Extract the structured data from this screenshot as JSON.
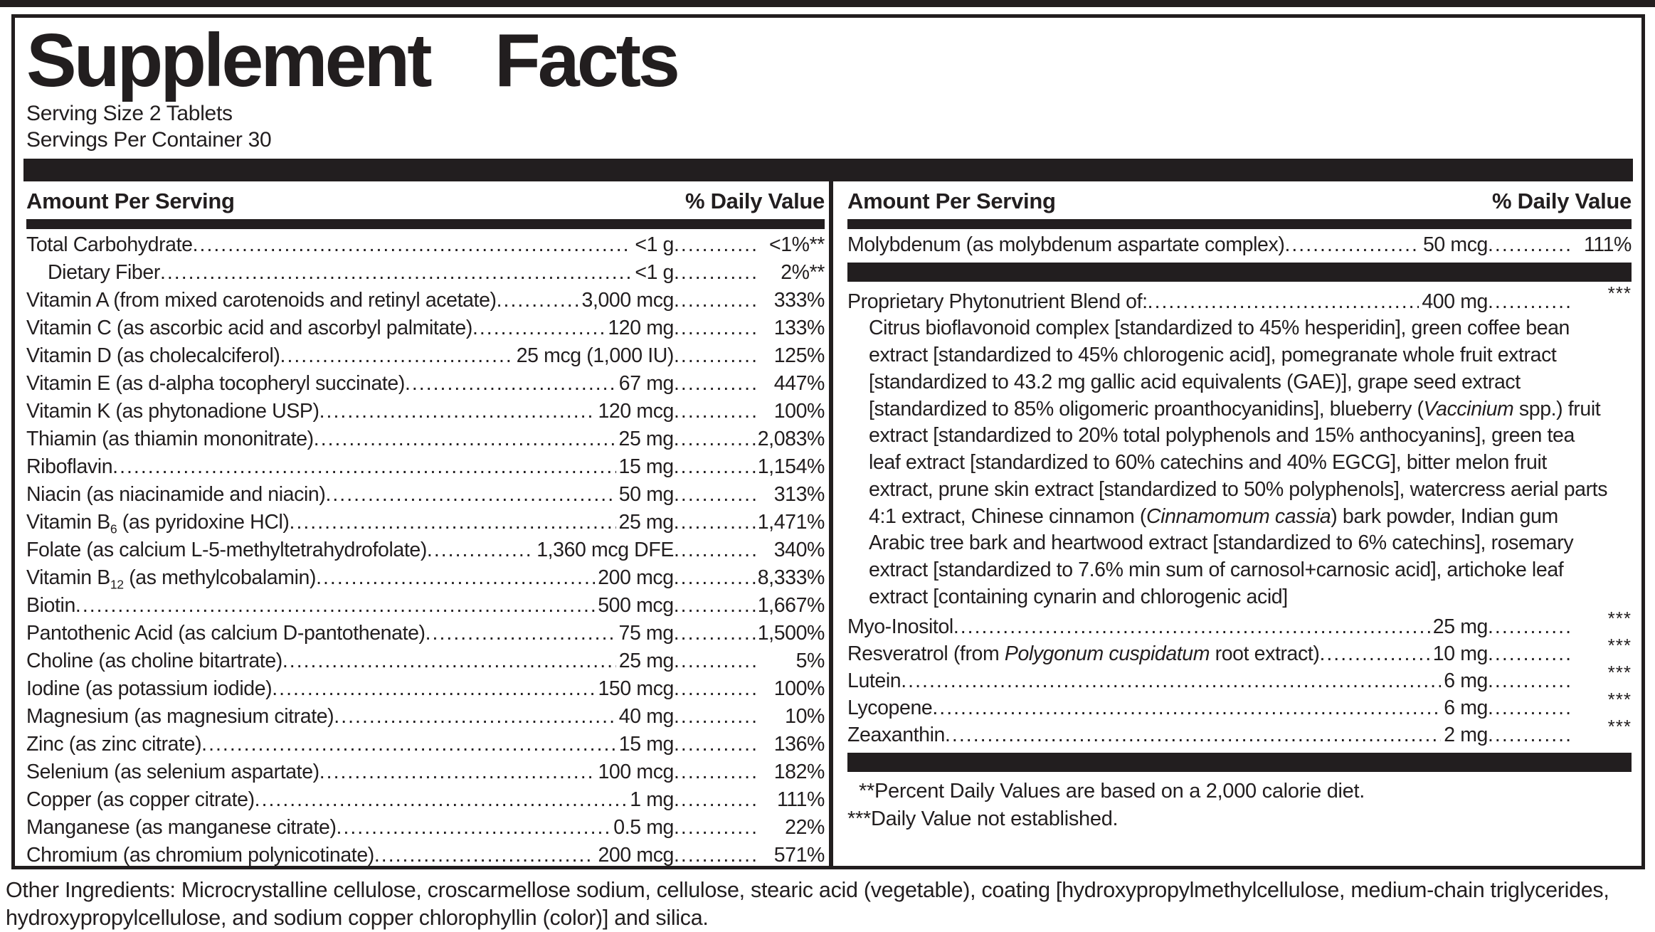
{
  "ink_color": "#221e1f",
  "title": "Supplement Facts",
  "serving": {
    "size": "Serving Size 2 Tablets",
    "per_container": "Servings Per Container 30"
  },
  "column_header": {
    "amount": "Amount Per Serving",
    "daily_value": "% Daily Value"
  },
  "left_column": {
    "rows": [
      {
        "name_parts": [
          {
            "t": "Total Carbohydrate "
          }
        ],
        "amount": "<1 g",
        "dv": "<1%**"
      },
      {
        "name_parts": [
          {
            "t": "Dietary Fiber"
          }
        ],
        "amount": "<1 g",
        "dv": "2%**",
        "indent": true
      },
      {
        "name_parts": [
          {
            "t": "Vitamin A (from mixed carotenoids and retinyl acetate)"
          }
        ],
        "amount": "3,000 mcg",
        "dv": "333%"
      },
      {
        "name_parts": [
          {
            "t": "Vitamin C (as ascorbic acid and ascorbyl palmitate) "
          }
        ],
        "amount": "120 mg",
        "dv": "133%"
      },
      {
        "name_parts": [
          {
            "t": "Vitamin D (as cholecalciferol)"
          }
        ],
        "amount": "25 mcg (1,000 IU)",
        "dv": "125%"
      },
      {
        "name_parts": [
          {
            "t": "Vitamin E (as d-alpha tocopheryl succinate)"
          }
        ],
        "amount": "67 mg",
        "dv": "447%"
      },
      {
        "name_parts": [
          {
            "t": "Vitamin K (as phytonadione USP) "
          }
        ],
        "amount": "120 mcg",
        "dv": "100%"
      },
      {
        "name_parts": [
          {
            "t": "Thiamin (as thiamin mononitrate) "
          }
        ],
        "amount": "25 mg",
        "dv": "2,083%"
      },
      {
        "name_parts": [
          {
            "t": "Riboflavin"
          }
        ],
        "amount": "15 mg",
        "dv": "1,154%"
      },
      {
        "name_parts": [
          {
            "t": "Niacin (as niacinamide and niacin)"
          }
        ],
        "amount": "50 mg",
        "dv": "313%"
      },
      {
        "name_parts": [
          {
            "t": "Vitamin B"
          },
          {
            "t": "6",
            "sub": true
          },
          {
            "t": " (as pyridoxine HCl)"
          }
        ],
        "amount": "25 mg",
        "dv": "1,471%"
      },
      {
        "name_parts": [
          {
            "t": "Folate (as calcium L-5-methyltetrahydrofolate)"
          }
        ],
        "amount": "1,360 mcg DFE",
        "dv": "340%"
      },
      {
        "name_parts": [
          {
            "t": "Vitamin B"
          },
          {
            "t": "12",
            "sub": true
          },
          {
            "t": " (as methylcobalamin)"
          }
        ],
        "amount": "200 mcg",
        "dv": "8,333%"
      },
      {
        "name_parts": [
          {
            "t": "Biotin"
          }
        ],
        "amount": "500 mcg",
        "dv": "1,667%"
      },
      {
        "name_parts": [
          {
            "t": "Pantothenic Acid (as calcium D-pantothenate)"
          }
        ],
        "amount": "75 mg",
        "dv": "1,500%"
      },
      {
        "name_parts": [
          {
            "t": "Choline (as choline bitartrate) "
          }
        ],
        "amount": "25 mg",
        "dv": "5%"
      },
      {
        "name_parts": [
          {
            "t": "Iodine (as potassium iodide) "
          }
        ],
        "amount": "150 mcg",
        "dv": "100%"
      },
      {
        "name_parts": [
          {
            "t": "Magnesium (as magnesium citrate)"
          }
        ],
        "amount": "40 mg",
        "dv": "10%"
      },
      {
        "name_parts": [
          {
            "t": "Zinc (as zinc citrate) "
          }
        ],
        "amount": "15 mg",
        "dv": "136%"
      },
      {
        "name_parts": [
          {
            "t": "Selenium (as selenium aspartate)"
          }
        ],
        "amount": "100 mcg",
        "dv": "182%"
      },
      {
        "name_parts": [
          {
            "t": "Copper (as copper citrate)"
          }
        ],
        "amount": "1 mg",
        "dv": "111%"
      },
      {
        "name_parts": [
          {
            "t": "Manganese (as manganese citrate) "
          }
        ],
        "amount": "0.5 mg",
        "dv": "22%"
      },
      {
        "name_parts": [
          {
            "t": "Chromium (as chromium polynicotinate)"
          }
        ],
        "amount": "200 mcg",
        "dv": "571%"
      }
    ]
  },
  "right_column": {
    "rows_top": [
      {
        "name_parts": [
          {
            "t": "Molybdenum (as molybdenum aspartate complex) "
          }
        ],
        "amount": "50 mcg",
        "dv": "111%"
      }
    ],
    "blend_header_rows": [
      {
        "name_parts": [
          {
            "t": "Proprietary Phytonutrient Blend of: "
          }
        ],
        "amount": "400 mg",
        "dv": "***"
      }
    ],
    "blend": {
      "body_parts": [
        {
          "t": "Citrus bioflavonoid complex [standardized to 45% hesperidin], green coffee bean extract [standardized to 45% chlorogenic acid], pomegranate whole fruit extract [standardized to 43.2 mg gallic acid equivalents (GAE)], grape seed extract [standardized to 85% oligomeric proanthocyanidins], blueberry ("
        },
        {
          "t": "Vaccinium",
          "i": true
        },
        {
          "t": " spp.) fruit extract [standardized to 20% total polyphenols and 15% anthocyanins], green tea leaf extract [standardized to 60% catechins and 40% EGCG], bitter melon fruit extract, prune skin extract [standardized to 50% polyphenols], watercress aerial parts 4:1 extract, Chinese cinnamon ("
        },
        {
          "t": "Cinnamomum cassia",
          "i": true
        },
        {
          "t": ") bark powder, Indian gum Arabic tree bark and heartwood extract [standardized to 6% catechins], rosemary extract [standardized to 7.6% min sum of carnosol+carnosic acid], artichoke leaf extract [containing cynarin and chlorogenic acid]"
        }
      ]
    },
    "rows_bottom": [
      {
        "name_parts": [
          {
            "t": "Myo-Inositol"
          }
        ],
        "amount": "25 mg",
        "dv": "***"
      },
      {
        "name_parts": [
          {
            "t": "Resveratrol (from "
          },
          {
            "t": "Polygonum cuspidatum",
            "i": true
          },
          {
            "t": " root extract)"
          }
        ],
        "amount": "10 mg",
        "dv": "***"
      },
      {
        "name_parts": [
          {
            "t": "Lutein "
          }
        ],
        "amount": "6 mg",
        "dv": "***"
      },
      {
        "name_parts": [
          {
            "t": "Lycopene"
          }
        ],
        "amount": "6 mg",
        "dv": "***"
      },
      {
        "name_parts": [
          {
            "t": "Zeaxanthin"
          }
        ],
        "amount": "2 mg",
        "dv": "***"
      }
    ],
    "footnotes": [
      "**Percent Daily Values are based on a 2,000 calorie diet.",
      "***Daily Value not established."
    ]
  },
  "other_ingredients": "Other Ingredients: Microcrystalline cellulose, croscarmellose sodium, cellulose, stearic acid (vegetable), coating [hydroxypropylmethylcellulose, medium-chain triglycerides, hydroxypropylcellulose, and sodium copper chlorophyllin (color)] and silica."
}
